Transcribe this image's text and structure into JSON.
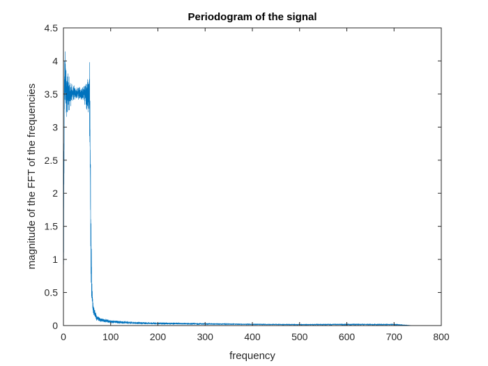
{
  "chart_data": {
    "type": "line",
    "title": "Periodogram of the signal",
    "xlabel": "frequency",
    "ylabel": "magnitude of the FFT of the frequencies",
    "xlim": [
      0,
      800
    ],
    "ylim": [
      0,
      4.5
    ],
    "xticks": [
      0,
      100,
      200,
      300,
      400,
      500,
      600,
      700,
      800
    ],
    "yticks": [
      0,
      0.5,
      1,
      1.5,
      2,
      2.5,
      3,
      3.5,
      4,
      4.5
    ],
    "xtick_labels": [
      "0",
      "100",
      "200",
      "300",
      "400",
      "500",
      "600",
      "700",
      "800"
    ],
    "ytick_labels": [
      "0",
      "0.5",
      "1",
      "1.5",
      "2",
      "2.5",
      "3",
      "3.5",
      "4",
      "4.5"
    ],
    "grid": false,
    "box": true,
    "series": [
      {
        "color": "#0072BD",
        "envelope": {
          "description_points": "upper and lower bounds of the dense periodogram trace",
          "x": [
            0,
            1,
            2,
            4,
            6,
            10,
            15,
            20,
            30,
            40,
            45,
            50,
            53,
            55,
            56,
            57,
            58,
            60,
            62,
            65,
            70,
            80,
            100,
            150,
            200,
            300,
            400,
            500,
            600,
            700,
            740
          ],
          "upper": [
            0.1,
            3.0,
            4.4,
            4.4,
            4.05,
            3.85,
            3.75,
            3.68,
            3.62,
            3.65,
            3.7,
            3.8,
            3.95,
            4.05,
            4.15,
            3.6,
            2.0,
            0.8,
            0.45,
            0.3,
            0.18,
            0.12,
            0.09,
            0.06,
            0.05,
            0.04,
            0.03,
            0.025,
            0.03,
            0.03,
            0.0
          ],
          "lower": [
            0.0,
            1.2,
            2.8,
            3.0,
            3.05,
            3.15,
            3.25,
            3.35,
            3.4,
            3.38,
            3.3,
            3.2,
            3.05,
            2.9,
            2.0,
            1.0,
            0.5,
            0.25,
            0.15,
            0.1,
            0.07,
            0.05,
            0.03,
            0.02,
            0.015,
            0.01,
            0.008,
            0.005,
            0.004,
            0.003,
            0.0
          ],
          "center": [
            0.05,
            2.1,
            3.5,
            3.6,
            3.55,
            3.5,
            3.5,
            3.5,
            3.5,
            3.5,
            3.5,
            3.5,
            3.5,
            3.45,
            3.0,
            2.2,
            1.2,
            0.5,
            0.3,
            0.2,
            0.12,
            0.08,
            0.06,
            0.04,
            0.03,
            0.02,
            0.015,
            0.012,
            0.012,
            0.01,
            0.0
          ]
        }
      }
    ]
  }
}
